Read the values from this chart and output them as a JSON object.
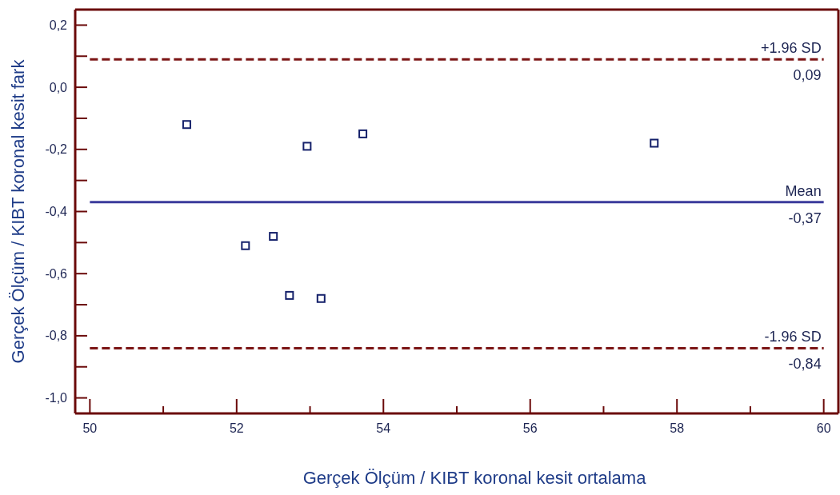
{
  "chart_data": {
    "type": "scatter",
    "xlabel": "Gerçek Ölçüm / KIBT koronal kesit ortalama",
    "ylabel": "Gerçek Ölçüm / KIBT koronal kesit fark",
    "x": [
      51.32,
      52.96,
      53.72,
      52.12,
      52.5,
      52.72,
      53.15,
      57.69
    ],
    "values": [
      -0.12,
      -0.19,
      -0.15,
      -0.51,
      -0.48,
      -0.67,
      -0.68,
      -0.18
    ],
    "color": "#14206a",
    "marker": "square",
    "xlim": [
      49.8,
      60.2
    ],
    "ylim": [
      -1.05,
      0.25
    ],
    "xticks": [
      50,
      {
        "value": 51,
        "label": null
      },
      52,
      {
        "value": 53,
        "label": null
      },
      54,
      {
        "value": 55,
        "label": null
      },
      56,
      {
        "value": 57,
        "label": null
      },
      58,
      {
        "value": 59,
        "label": null
      },
      60
    ],
    "yticks": [
      {
        "value": -1.0,
        "label": "-1,0"
      },
      {
        "value": -0.9,
        "label": null
      },
      {
        "value": -0.8,
        "label": "-0,8"
      },
      {
        "value": -0.7,
        "label": null
      },
      {
        "value": -0.6,
        "label": "-0,6"
      },
      {
        "value": -0.5,
        "label": null
      },
      {
        "value": -0.4,
        "label": "-0,4"
      },
      {
        "value": -0.3,
        "label": null
      },
      {
        "value": -0.2,
        "label": "-0,2"
      },
      {
        "value": -0.1,
        "label": null
      },
      {
        "value": 0.0,
        "label": "0,0"
      },
      {
        "value": 0.1,
        "label": null
      },
      {
        "value": 0.2,
        "label": "0,2"
      }
    ],
    "ref_lines": [
      {
        "axis": "y",
        "value": 0.09,
        "label": "+1.96 SD",
        "color": "#7b1414",
        "line_style": "dashed"
      },
      {
        "axis": "y",
        "value": -0.37,
        "label": "Mean",
        "color": "#3c3c9c",
        "line_style": "solid"
      },
      {
        "axis": "y",
        "value": -0.84,
        "label": "-1.96 SD",
        "color": "#7b1414",
        "line_style": "dashed"
      }
    ],
    "annotations": [
      {
        "text": "0,09",
        "y": 0.09
      },
      {
        "text": "-0,37",
        "y": -0.37
      },
      {
        "text": "-0,84",
        "y": -0.84
      }
    ]
  }
}
